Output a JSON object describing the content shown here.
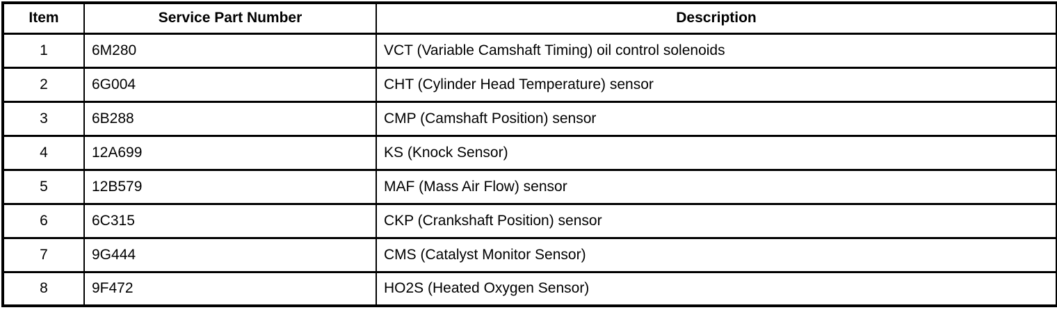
{
  "table": {
    "columns": [
      {
        "label": "Item"
      },
      {
        "label": "Service Part Number"
      },
      {
        "label": "Description"
      }
    ],
    "rows": [
      {
        "item": "1",
        "part": "6M280",
        "desc": "VCT (Variable Camshaft Timing) oil control solenoids"
      },
      {
        "item": "2",
        "part": "6G004",
        "desc": "CHT (Cylinder Head Temperature) sensor"
      },
      {
        "item": "3",
        "part": "6B288",
        "desc": "CMP (Camshaft Position) sensor"
      },
      {
        "item": "4",
        "part": "12A699",
        "desc": "KS (Knock Sensor)"
      },
      {
        "item": "5",
        "part": "12B579",
        "desc": "MAF (Mass Air Flow) sensor"
      },
      {
        "item": "6",
        "part": "6C315",
        "desc": "CKP (Crankshaft Position) sensor"
      },
      {
        "item": "7",
        "part": "9G444",
        "desc": "CMS (Catalyst Monitor Sensor)"
      },
      {
        "item": "8",
        "part": "9F472",
        "desc": "HO2S (Heated Oxygen Sensor)"
      }
    ]
  },
  "colors": {
    "border": "#000000",
    "background": "#ffffff",
    "text": "#000000"
  }
}
